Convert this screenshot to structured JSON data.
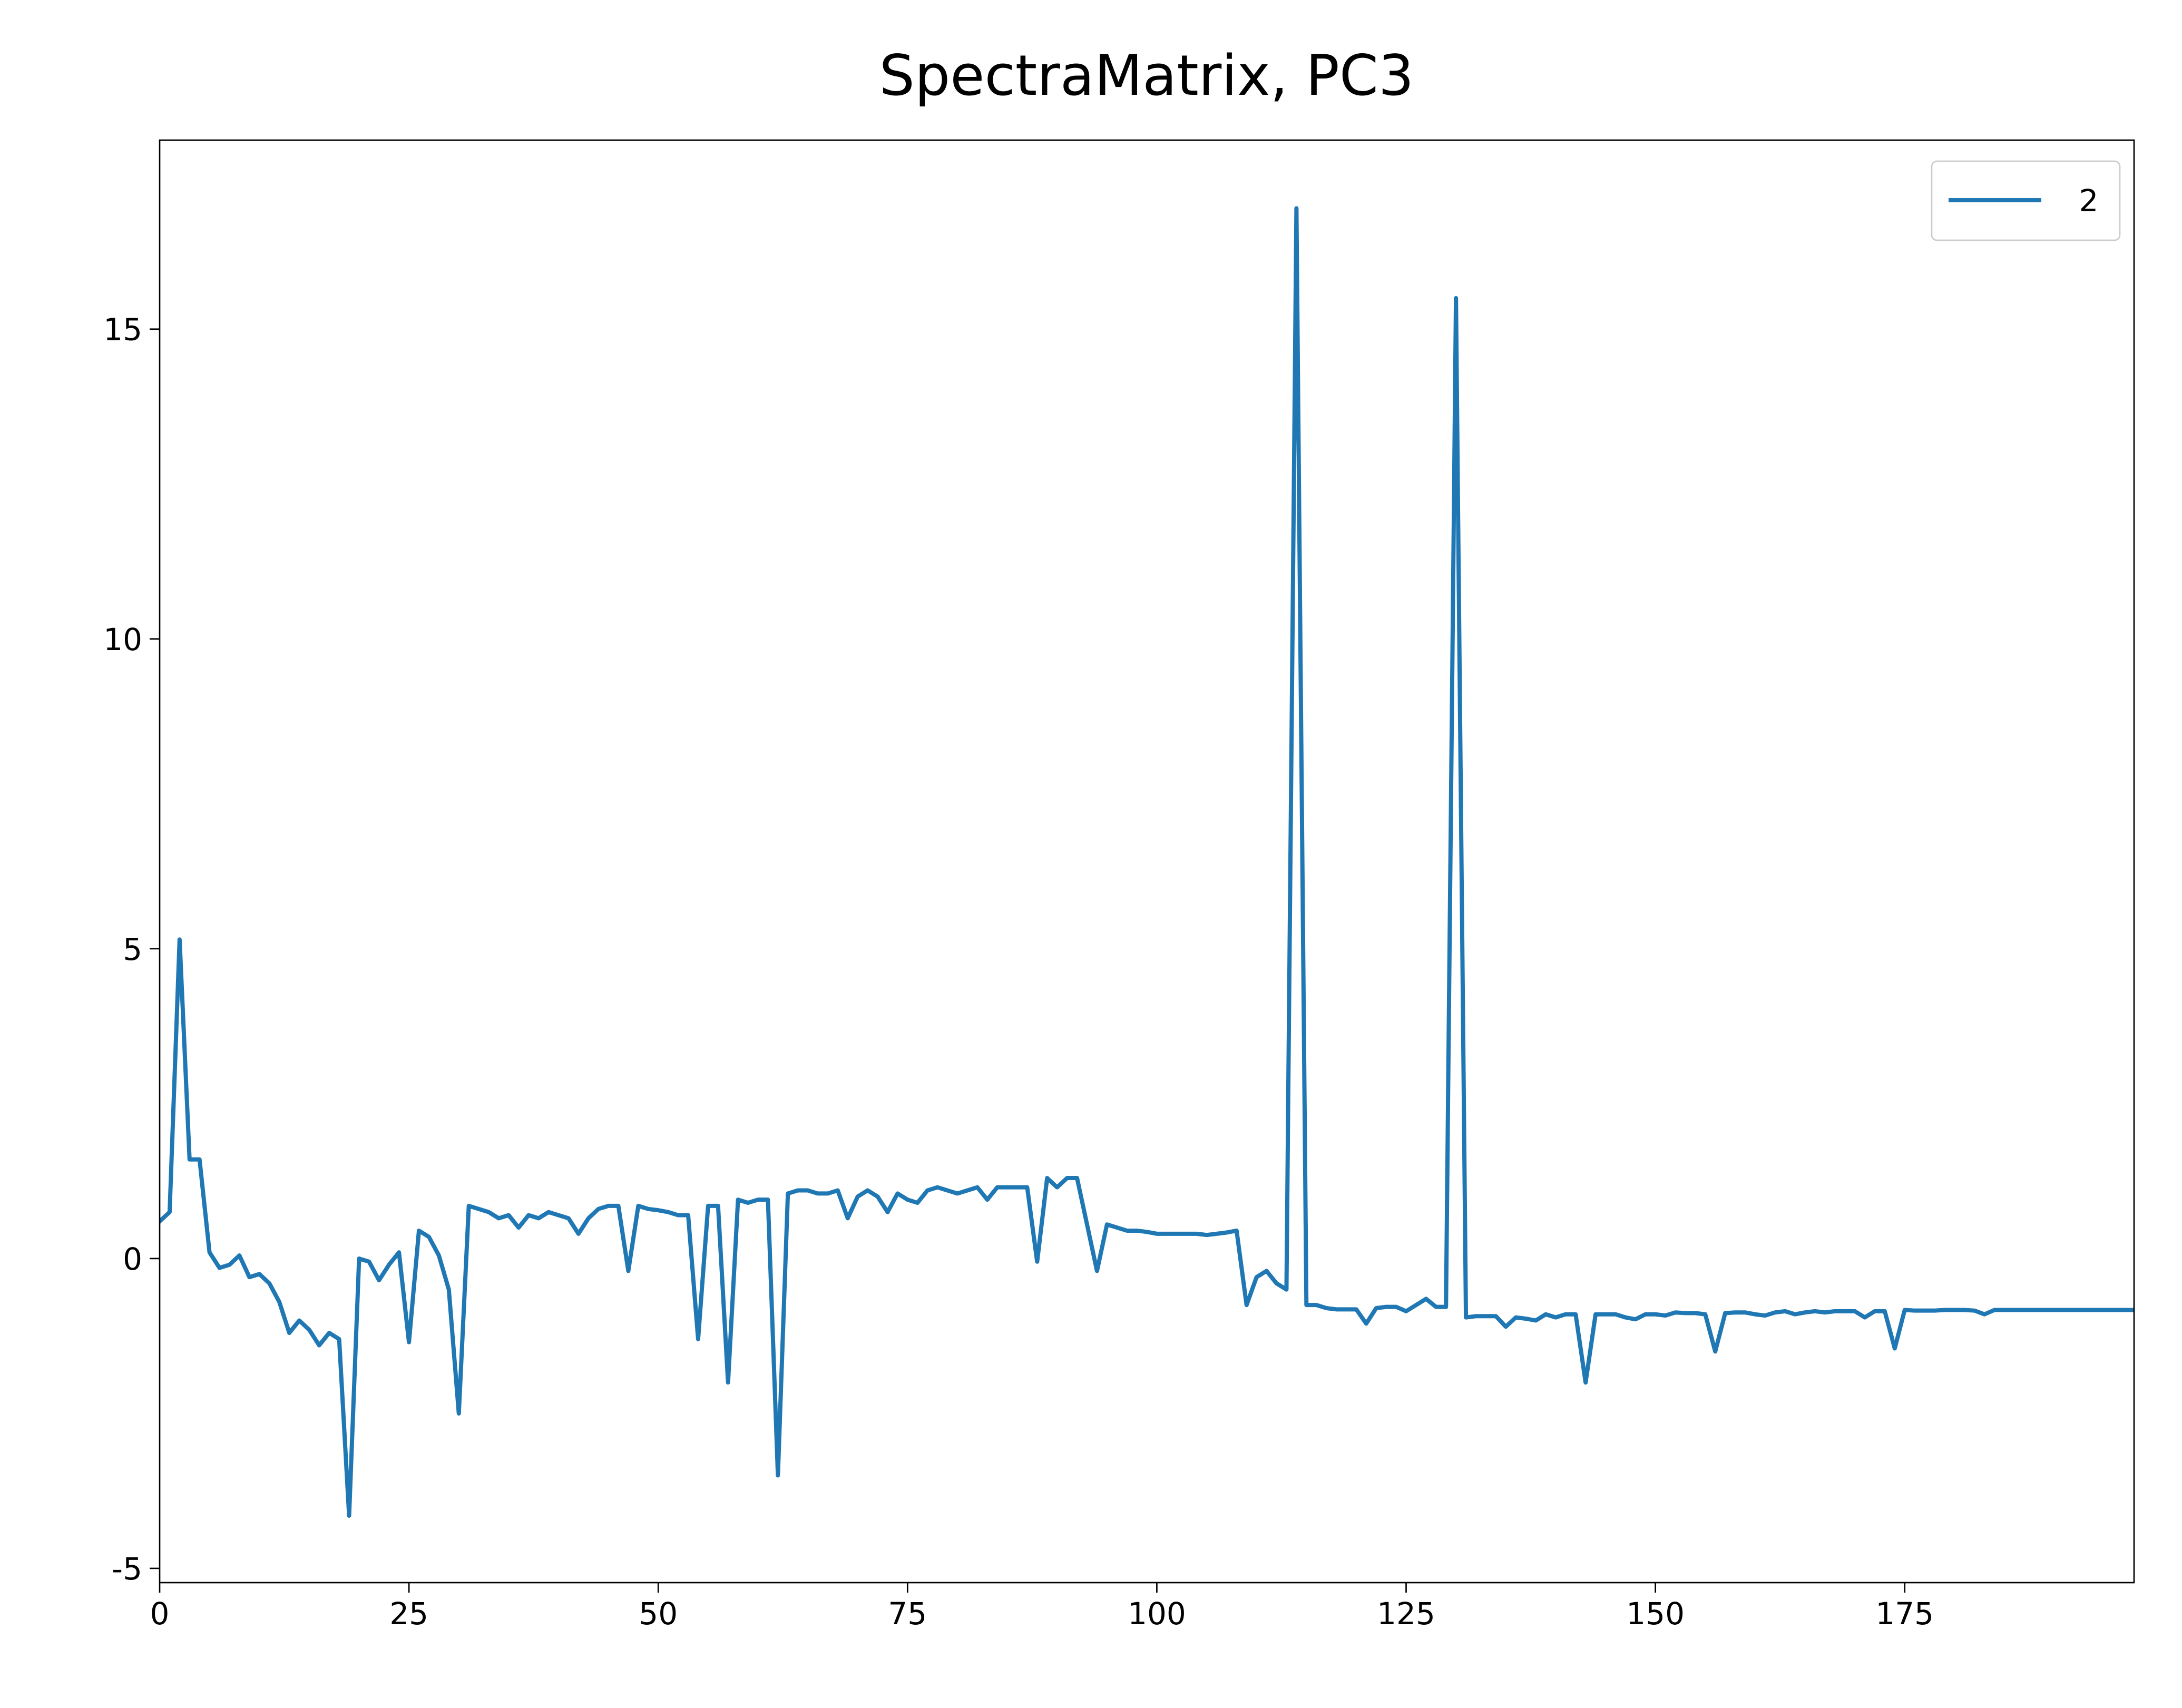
{
  "chart_data": {
    "type": "line",
    "title": "SpectraMatrix, PC3",
    "x": [
      0,
      1,
      2,
      3,
      4,
      5,
      6,
      7,
      8,
      9,
      10,
      11,
      12,
      13,
      14,
      15,
      16,
      17,
      18,
      19,
      20,
      21,
      22,
      23,
      24,
      25,
      26,
      27,
      28,
      29,
      30,
      31,
      32,
      33,
      34,
      35,
      36,
      37,
      38,
      39,
      40,
      41,
      42,
      43,
      44,
      45,
      46,
      47,
      48,
      49,
      50,
      51,
      52,
      53,
      54,
      55,
      56,
      57,
      58,
      59,
      60,
      61,
      62,
      63,
      64,
      65,
      66,
      67,
      68,
      69,
      70,
      71,
      72,
      73,
      74,
      75,
      76,
      77,
      78,
      79,
      80,
      81,
      82,
      83,
      84,
      85,
      86,
      87,
      88,
      89,
      90,
      91,
      92,
      93,
      94,
      95,
      96,
      97,
      98,
      99,
      100,
      101,
      102,
      103,
      104,
      105,
      106,
      107,
      108,
      109,
      110,
      111,
      112,
      113,
      114,
      115,
      116,
      117,
      118,
      119,
      120,
      121,
      122,
      123,
      124,
      125,
      126,
      127,
      128,
      129,
      130,
      131,
      132,
      133,
      134,
      135,
      136,
      137,
      138,
      139,
      140,
      141,
      142,
      143,
      144,
      145,
      146,
      147,
      148,
      149,
      150,
      151,
      152,
      153,
      154,
      155,
      156,
      157,
      158,
      159,
      160,
      161,
      162,
      163,
      164,
      165,
      166,
      167,
      168,
      169,
      170,
      171,
      172,
      173,
      174,
      175,
      176,
      177,
      178,
      179,
      180,
      181,
      182,
      183,
      184,
      185,
      186,
      187,
      188,
      189,
      190,
      191,
      192,
      193,
      194,
      195,
      196,
      197,
      198
    ],
    "series": [
      {
        "name": "2",
        "color": "#1f77b4",
        "values": [
          0.6,
          0.75,
          5.15,
          1.6,
          1.6,
          0.1,
          -0.15,
          -0.1,
          0.05,
          -0.3,
          -0.25,
          -0.4,
          -0.7,
          -1.2,
          -1.0,
          -1.15,
          -1.4,
          -1.2,
          -1.3,
          -4.15,
          0.0,
          -0.05,
          -0.35,
          -0.1,
          0.1,
          -1.35,
          0.45,
          0.35,
          0.05,
          -0.5,
          -2.5,
          0.85,
          0.8,
          0.75,
          0.65,
          0.7,
          0.5,
          0.7,
          0.65,
          0.75,
          0.7,
          0.65,
          0.4,
          0.65,
          0.8,
          0.85,
          0.85,
          -0.2,
          0.85,
          0.8,
          0.78,
          0.75,
          0.7,
          0.7,
          -1.3,
          0.85,
          0.85,
          -2.0,
          0.95,
          0.9,
          0.95,
          0.95,
          -3.5,
          1.05,
          1.1,
          1.1,
          1.05,
          1.05,
          1.1,
          0.65,
          1.0,
          1.1,
          1.0,
          0.75,
          1.05,
          0.95,
          0.9,
          1.1,
          1.15,
          1.1,
          1.05,
          1.1,
          1.15,
          0.95,
          1.15,
          1.15,
          1.15,
          1.15,
          -0.05,
          1.3,
          1.15,
          1.3,
          1.3,
          0.55,
          -0.2,
          0.55,
          0.5,
          0.45,
          0.45,
          0.43,
          0.4,
          0.4,
          0.4,
          0.4,
          0.4,
          0.38,
          0.4,
          0.42,
          0.45,
          -0.75,
          -0.3,
          -0.2,
          -0.4,
          -0.5,
          16.95,
          -0.75,
          -0.75,
          -0.8,
          -0.82,
          -0.82,
          -0.82,
          -1.05,
          -0.8,
          -0.78,
          -0.78,
          -0.85,
          -0.75,
          -0.65,
          -0.78,
          -0.78,
          15.5,
          -0.95,
          -0.93,
          -0.93,
          -0.93,
          -1.1,
          -0.95,
          -0.97,
          -1.0,
          -0.9,
          -0.95,
          -0.9,
          -0.9,
          -2.0,
          -0.9,
          -0.9,
          -0.9,
          -0.95,
          -0.98,
          -0.9,
          -0.9,
          -0.92,
          -0.87,
          -0.88,
          -0.88,
          -0.9,
          -1.5,
          -0.88,
          -0.87,
          -0.87,
          -0.9,
          -0.92,
          -0.87,
          -0.85,
          -0.9,
          -0.87,
          -0.85,
          -0.87,
          -0.85,
          -0.85,
          -0.85,
          -0.95,
          -0.85,
          -0.85,
          -1.45,
          -0.83,
          -0.84,
          -0.84,
          -0.84,
          -0.83,
          -0.83,
          -0.83,
          -0.84,
          -0.9,
          -0.83,
          -0.83,
          -0.83,
          -0.83,
          -0.83,
          -0.83,
          -0.83,
          -0.83,
          -0.83,
          -0.83,
          -0.83,
          -0.83,
          -0.83,
          -0.83,
          -0.83
        ]
      }
    ],
    "xlim": [
      0,
      198
    ],
    "ylim": [
      -5.23,
      18.05
    ],
    "xticks": [
      0,
      25,
      50,
      75,
      100,
      125,
      150,
      175
    ],
    "yticks": [
      -5,
      0,
      5,
      10,
      15
    ],
    "grid": false,
    "legend": "upper right"
  }
}
